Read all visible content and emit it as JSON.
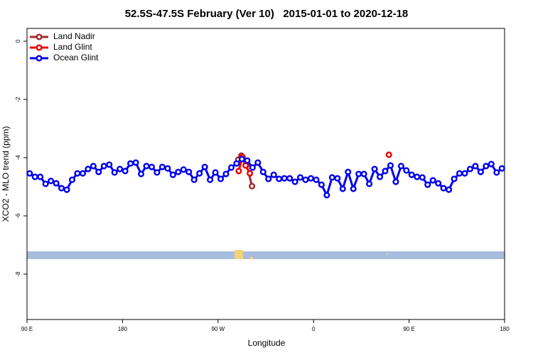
{
  "chart_data": {
    "type": "line",
    "title": "52.5S-47.5S February (Ver 10)   2015-01-01 to 2020-12-18",
    "x_label": "Longitude",
    "y_label": "XCO2 - MLO trend (ppm)",
    "xlim": [
      90,
      540
    ],
    "xticks": [
      {
        "value": 90,
        "label": "90 E"
      },
      {
        "value": 180,
        "label": "180"
      },
      {
        "value": 270,
        "label": "90 W"
      },
      {
        "value": 360,
        "label": "0"
      },
      {
        "value": 450,
        "label": "90 E"
      },
      {
        "value": 540,
        "label": "180"
      }
    ],
    "ylim": [
      -9.56,
      0.44
    ],
    "yticks": [
      0,
      -2,
      -4,
      -6,
      -8
    ],
    "legend": "top-left",
    "series": [
      {
        "name": "Land Nadir",
        "color": "#a52a2a",
        "x": [
          289,
          292,
          297,
          302
        ],
        "values": [
          -4.07,
          -3.93,
          -4.24,
          -4.98
        ]
      },
      {
        "name": "Land Glint",
        "color": "#ee0000",
        "x": [
          289.5,
          293,
          296,
          300,
          365,
          431
        ],
        "values": [
          -4.46,
          -3.98,
          -4.27,
          -4.54,
          null,
          -3.9
        ]
      },
      {
        "name": "Ocean Glint",
        "color": "#0000ee",
        "x": [
          92.5,
          97.5,
          102.5,
          107.5,
          112.5,
          117.5,
          122.5,
          127.5,
          132.5,
          137.5,
          142.5,
          147.5,
          152.5,
          157.5,
          162.5,
          167.5,
          172.5,
          177.5,
          182.5,
          187.5,
          192.5,
          197.5,
          202.5,
          207.5,
          212.5,
          217.5,
          222.5,
          227.5,
          232.5,
          237.5,
          242.5,
          247.5,
          252.5,
          257.5,
          262.5,
          267.5,
          272.5,
          277.5,
          282.5,
          287.5,
          292.5,
          297.5,
          302.5,
          307.5,
          312.5,
          317.5,
          322.5,
          327.5,
          332.5,
          337.5,
          342.5,
          347.5,
          352.5,
          357.5,
          362.5,
          367.5,
          372.5,
          377.5,
          382.5,
          387.5,
          392.5,
          397.5,
          402.5,
          407.5,
          412.5,
          417.5,
          422.5,
          427.5,
          432.5,
          437.5,
          442.5,
          447.5,
          452.5,
          457.5,
          462.5,
          467.5,
          472.5,
          477.5,
          482.5,
          487.5,
          492.5,
          497.5,
          502.5,
          507.5,
          512.5,
          517.5,
          522.5,
          527.5,
          532.5,
          537.5
        ],
        "values": [
          -4.54,
          -4.66,
          -4.66,
          -4.9,
          -4.8,
          -4.88,
          -5.05,
          -5.1,
          -4.76,
          -4.54,
          -4.54,
          -4.39,
          -4.29,
          -4.49,
          -4.29,
          -4.24,
          -4.51,
          -4.39,
          -4.46,
          -4.2,
          -4.17,
          -4.56,
          -4.29,
          -4.32,
          -4.51,
          -4.32,
          -4.37,
          -4.59,
          -4.49,
          -4.41,
          -4.49,
          -4.76,
          -4.54,
          -4.32,
          -4.76,
          -4.51,
          -4.73,
          -4.56,
          -4.34,
          -4.2,
          -4.05,
          -4.1,
          -4.34,
          -4.17,
          -4.49,
          -4.73,
          -4.59,
          -4.73,
          -4.71,
          -4.71,
          -4.83,
          -4.68,
          -4.76,
          -4.71,
          -4.76,
          -4.93,
          -5.29,
          -4.68,
          -4.71,
          -5.07,
          -4.49,
          -5.07,
          -4.56,
          -4.56,
          -4.9,
          -4.39,
          -4.66,
          -4.46,
          -4.27,
          -4.83,
          -4.29,
          -4.44,
          -4.59,
          -4.66,
          -4.68,
          -4.93,
          -4.78,
          -4.88,
          -5.05,
          -5.1,
          -4.73,
          -4.54,
          -4.54,
          -4.39,
          -4.29,
          -4.49,
          -4.29,
          -4.22,
          -4.51,
          -4.37
        ]
      }
    ]
  }
}
